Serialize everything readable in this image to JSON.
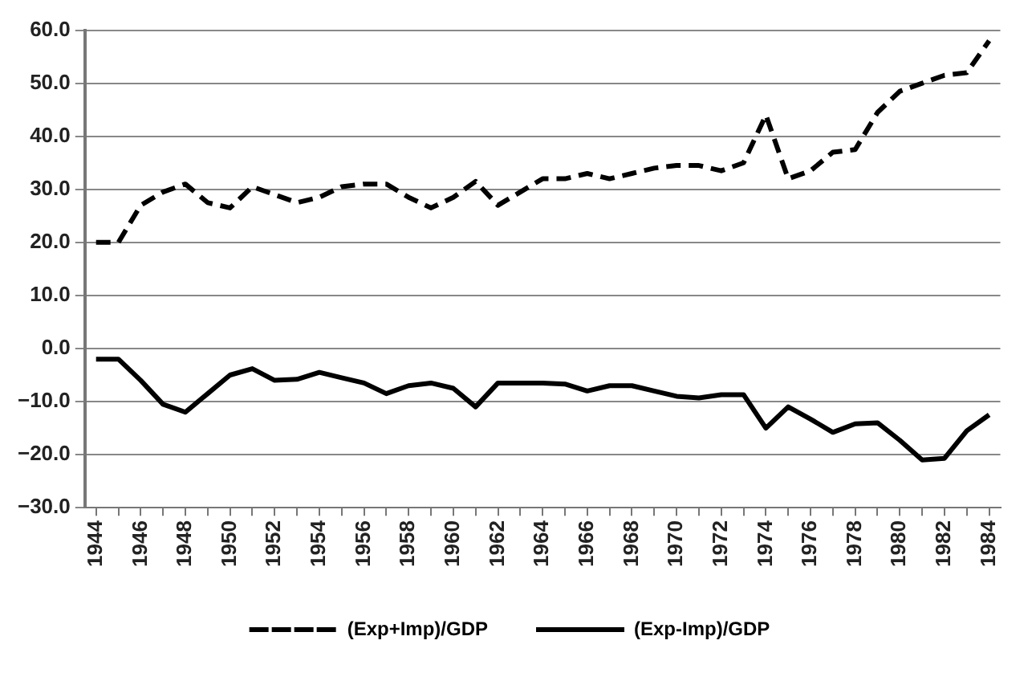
{
  "chart_data": {
    "type": "line",
    "categories": [
      "1944",
      null,
      "1946",
      null,
      "1948",
      null,
      "1950",
      null,
      "1952",
      null,
      "1954",
      null,
      "1956",
      null,
      "1958",
      null,
      "1960",
      null,
      "1962",
      null,
      "1964",
      null,
      "1966",
      null,
      "1968",
      null,
      "1970",
      null,
      "1972",
      null,
      "1974",
      null,
      "1976",
      null,
      "1978",
      null,
      "1980",
      null,
      "1982",
      null,
      "1984"
    ],
    "series": [
      {
        "name": "(Exp+Imp)/GDP",
        "color": "#000000",
        "line_style": "dashed",
        "values": [
          20,
          20,
          27,
          29.5,
          31,
          27.5,
          26.5,
          30.5,
          29,
          27.5,
          28.5,
          30.5,
          31,
          31,
          28.5,
          26.5,
          28.5,
          31.5,
          27,
          29.5,
          32,
          32,
          33,
          32,
          33,
          34,
          34.5,
          34.5,
          33.5,
          35,
          44,
          32,
          33.5,
          37,
          37.5,
          44.5,
          48.5,
          50,
          51.5,
          52,
          58
        ]
      },
      {
        "name": "(Exp-Imp)/GDP",
        "color": "#000000",
        "line_style": "solid",
        "values": [
          -2,
          -2,
          -6,
          -10.5,
          -12,
          -8.5,
          -5,
          -3.8,
          -6,
          -5.8,
          -4.5,
          -5.5,
          -6.5,
          -8.5,
          -7,
          -6.5,
          -7.5,
          -11,
          -6.5,
          -6.5,
          -6.5,
          -6.7,
          -8,
          -7,
          -7,
          -8,
          -9,
          -9.3,
          -8.7,
          -8.7,
          -15,
          -11,
          -13.3,
          -15.8,
          -14.2,
          -14,
          -17.3,
          -21,
          -20.7,
          -15.5,
          -12.5
        ]
      }
    ],
    "ylim": [
      -30,
      60
    ],
    "yticks": [
      {
        "value": -30,
        "label": "−30.0"
      },
      {
        "value": -20,
        "label": "−20.0"
      },
      {
        "value": -10,
        "label": "−10.0"
      },
      {
        "value": 0,
        "label": "0.0"
      },
      {
        "value": 10,
        "label": "10.0"
      },
      {
        "value": 20,
        "label": "20.0"
      },
      {
        "value": 30,
        "label": "30.0"
      },
      {
        "value": 40,
        "label": "40.0"
      },
      {
        "value": 50,
        "label": "50.0"
      },
      {
        "value": 60,
        "label": "60.0"
      }
    ],
    "grid": "y",
    "legend": "bottom",
    "marker": "none"
  }
}
